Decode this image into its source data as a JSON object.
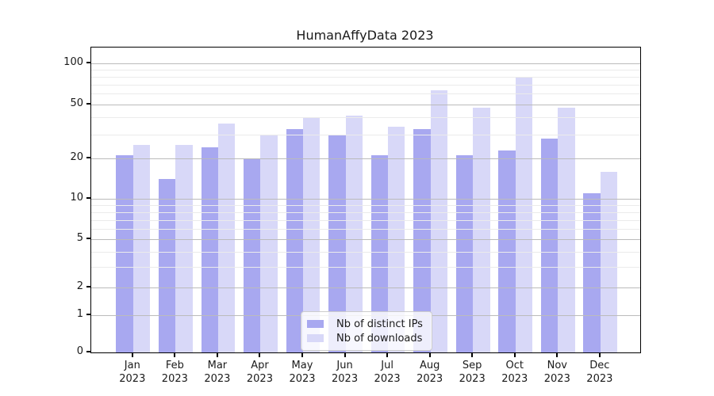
{
  "chart_data": {
    "type": "bar",
    "title": "HumanAffyData 2023",
    "months": [
      "Jan",
      "Feb",
      "Mar",
      "Apr",
      "May",
      "Jun",
      "Jul",
      "Aug",
      "Sep",
      "Oct",
      "Nov",
      "Dec"
    ],
    "year_label": "2023",
    "series": [
      {
        "name": "Nb of distinct IPs",
        "color": "#a8a8f0",
        "values": [
          21,
          14,
          24,
          20,
          33,
          30,
          21,
          33,
          21,
          23,
          28,
          11
        ]
      },
      {
        "name": "Nb of downloads",
        "color": "#d8d8f8",
        "values": [
          25,
          25,
          36,
          30,
          40,
          41,
          34,
          63,
          47,
          79,
          47,
          16
        ]
      }
    ],
    "y_axis": {
      "scale": "log-like (asinh), 0 shown at baseline",
      "major_ticks": [
        0,
        1,
        2,
        5,
        10,
        20,
        50,
        100
      ],
      "minor_ticks": [
        3,
        4,
        6,
        7,
        8,
        9,
        30,
        40,
        60,
        70,
        80,
        90
      ],
      "top_value": 127
    },
    "grid": {
      "major": true,
      "minor": true,
      "drawn_over_bars": true
    },
    "legend": {
      "position": "bottom-center",
      "entries": [
        "Nb of distinct IPs",
        "Nb of downloads"
      ]
    }
  },
  "colors": {
    "bar_distinct_ips": "#a8a8f0",
    "bar_downloads": "#d8d8f8",
    "grid_major": "#bbbbbb",
    "grid_minor": "#ebebeb",
    "axis": "#000000",
    "text": "#1a1a1a",
    "legend_border": "#cccccc",
    "legend_background": "rgba(255,255,255,0.8)"
  }
}
